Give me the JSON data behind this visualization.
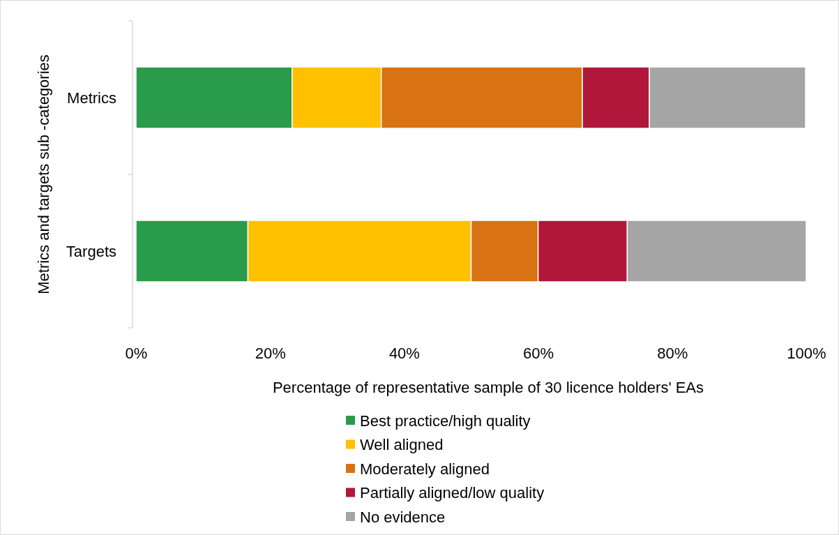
{
  "chart_data": {
    "type": "bar",
    "orientation": "horizontal",
    "stacked": true,
    "categories": [
      "Metrics",
      "Targets"
    ],
    "series": [
      {
        "name": "Best practice/high quality",
        "color": "#2a9b4a",
        "values": [
          23.3,
          16.7
        ]
      },
      {
        "name": "Well aligned",
        "color": "#ffc000",
        "values": [
          13.3,
          33.3
        ]
      },
      {
        "name": "Moderately aligned",
        "color": "#d97212",
        "values": [
          30,
          10
        ]
      },
      {
        "name": "Partially aligned/low quality",
        "color": "#b0173a",
        "values": [
          10,
          13.3
        ]
      },
      {
        "name": "No evidence",
        "color": "#a5a5a5",
        "values": [
          23.3,
          26.7
        ]
      }
    ],
    "xlim": [
      0,
      100
    ],
    "xticks": [
      {
        "value": 0,
        "label": "0%"
      },
      {
        "value": 20,
        "label": "20%"
      },
      {
        "value": 40,
        "label": "40%"
      },
      {
        "value": 60,
        "label": "60%"
      },
      {
        "value": 80,
        "label": "80%"
      },
      {
        "value": 100,
        "label": "100%"
      }
    ],
    "xlabel": "Percentage of representative sample of 30 licence holders' EAs",
    "ylabel": "Metrics and targets sub -categories",
    "legend": "bottom",
    "grid": false
  }
}
